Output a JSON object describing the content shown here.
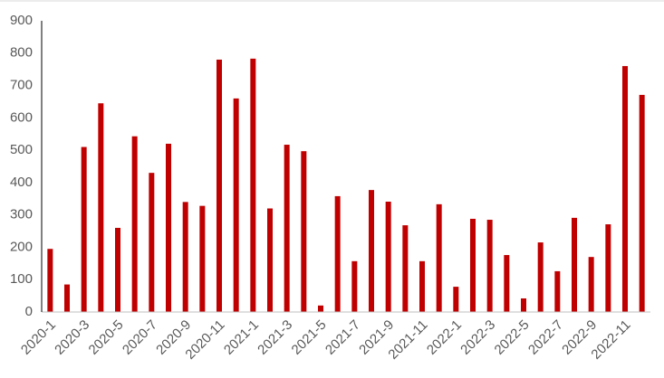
{
  "chart_data": {
    "type": "bar",
    "categories": [
      "2020-1",
      null,
      "2020-3",
      null,
      "2020-5",
      null,
      "2020-7",
      null,
      "2020-9",
      null,
      "2020-11",
      null,
      "2021-1",
      null,
      "2021-3",
      null,
      "2021-5",
      null,
      "2021-7",
      null,
      "2021-9",
      null,
      "2021-11",
      null,
      "2022-1",
      null,
      "2022-3",
      null,
      "2022-5",
      null,
      "2022-7",
      null,
      "2022-9",
      null,
      "2022-11",
      null
    ],
    "values": [
      195,
      85,
      510,
      645,
      260,
      543,
      430,
      520,
      340,
      328,
      780,
      660,
      783,
      320,
      517,
      497,
      20,
      358,
      157,
      377,
      341,
      268,
      157,
      333,
      78,
      288,
      285,
      176,
      42,
      215,
      126,
      291,
      170,
      271,
      760,
      671
    ],
    "color": "#c00000",
    "ylim": [
      0,
      900
    ],
    "yticks": [
      0,
      100,
      200,
      300,
      400,
      500,
      600,
      700,
      800,
      900
    ],
    "grid": false
  }
}
